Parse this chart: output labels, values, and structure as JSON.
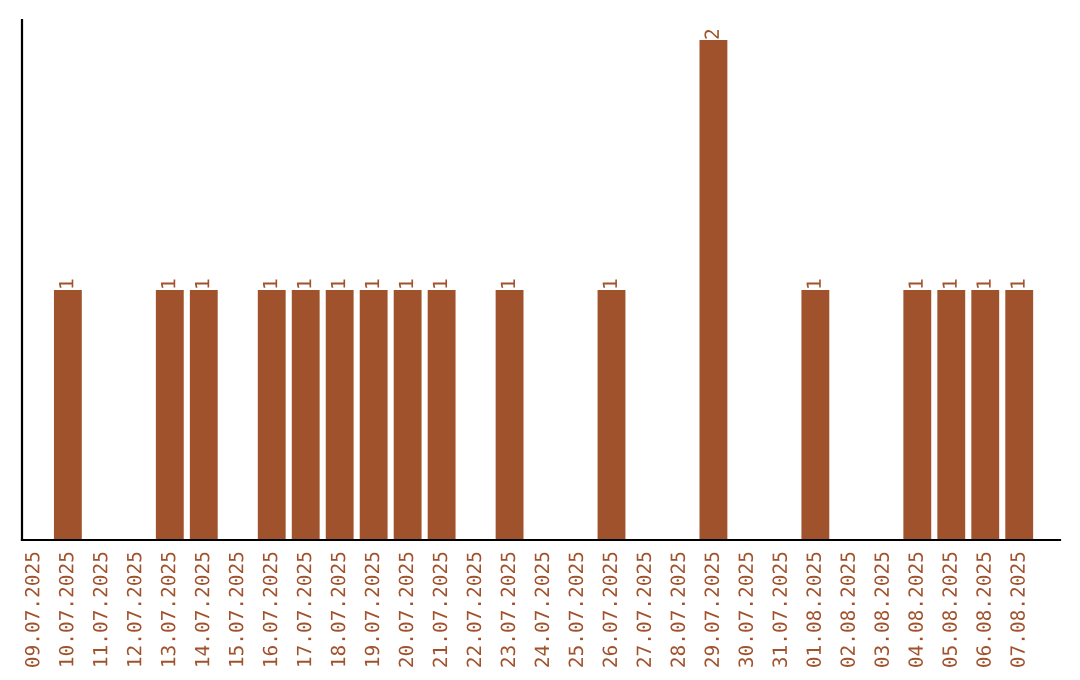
{
  "chart_data": {
    "type": "bar",
    "categories": [
      "09.07.2025",
      "10.07.2025",
      "11.07.2025",
      "12.07.2025",
      "13.07.2025",
      "14.07.2025",
      "15.07.2025",
      "16.07.2025",
      "17.07.2025",
      "18.07.2025",
      "19.07.2025",
      "20.07.2025",
      "21.07.2025",
      "22.07.2025",
      "23.07.2025",
      "24.07.2025",
      "25.07.2025",
      "26.07.2025",
      "27.07.2025",
      "28.07.2025",
      "29.07.2025",
      "30.07.2025",
      "31.07.2025",
      "01.08.2025",
      "02.08.2025",
      "03.08.2025",
      "04.08.2025",
      "05.08.2025",
      "06.08.2025",
      "07.08.2025"
    ],
    "values": [
      0,
      1,
      0,
      0,
      1,
      1,
      0,
      1,
      1,
      1,
      1,
      1,
      1,
      0,
      1,
      0,
      0,
      1,
      0,
      0,
      2,
      0,
      0,
      1,
      0,
      0,
      1,
      1,
      1,
      1
    ],
    "value_labels": [
      null,
      "1",
      null,
      null,
      "1",
      "1",
      null,
      "1",
      "1",
      "1",
      "1",
      "1",
      "1",
      null,
      "1",
      null,
      null,
      "1",
      null,
      null,
      "2",
      null,
      null,
      "1",
      null,
      null,
      "1",
      "1",
      "1",
      "1"
    ],
    "color": "#a0522d",
    "ylim": [
      0,
      2.08
    ],
    "tick_labels": "x",
    "grid": false
  }
}
